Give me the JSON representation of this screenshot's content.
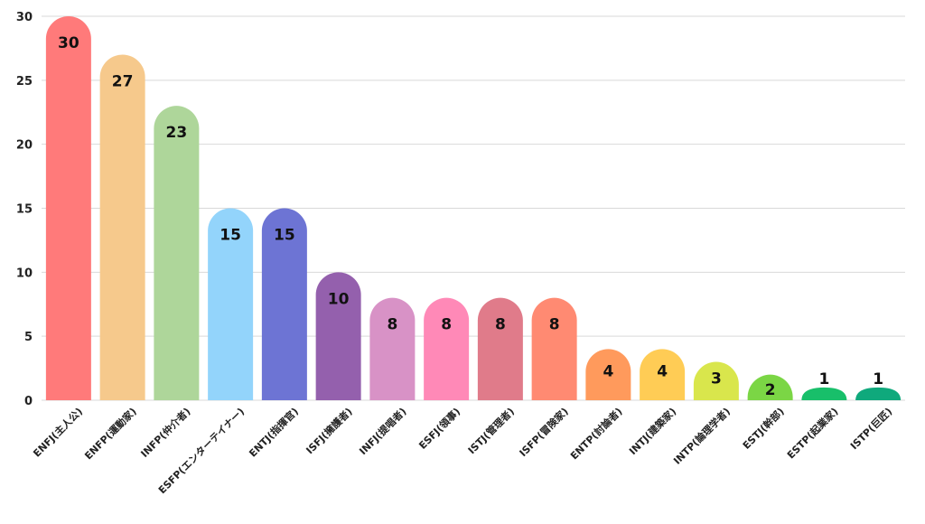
{
  "chart_data": {
    "type": "bar",
    "title": "",
    "xlabel": "",
    "ylabel": "",
    "ylim": [
      0,
      30
    ],
    "yticks": [
      0,
      5,
      10,
      15,
      20,
      25,
      30
    ],
    "grid": true,
    "legend": "none",
    "categories": [
      "ENFJ(主人公)",
      "ENFP(運動家)",
      "INFP(仲介者)",
      "ESFP(エンターテイナー)",
      "ENTJ(指揮官)",
      "ISFJ(擁護者)",
      "INFJ(提唱者)",
      "ESFJ(領事)",
      "ISTJ(管理者)",
      "ISFP(冒険家)",
      "ENTP(討論者)",
      "INTJ(建築家)",
      "INTP(論理学者)",
      "ESTJ(幹部)",
      "ESTP(起業家)",
      "ISTP(巨匠)"
    ],
    "values": [
      30,
      27,
      23,
      15,
      15,
      10,
      8,
      8,
      8,
      8,
      4,
      4,
      3,
      2,
      1,
      1
    ],
    "colors": [
      "#ff7a7a",
      "#f6c98c",
      "#aed69a",
      "#93d4fb",
      "#6d74d4",
      "#9460ad",
      "#d892c6",
      "#ff89b7",
      "#e07b8a",
      "#ff8a72",
      "#ff9a5c",
      "#ffcc55",
      "#d9e64c",
      "#7bd645",
      "#18bf6a",
      "#0fa97c"
    ],
    "grid_color": "#d9d9d9",
    "label_color": "#111111"
  }
}
